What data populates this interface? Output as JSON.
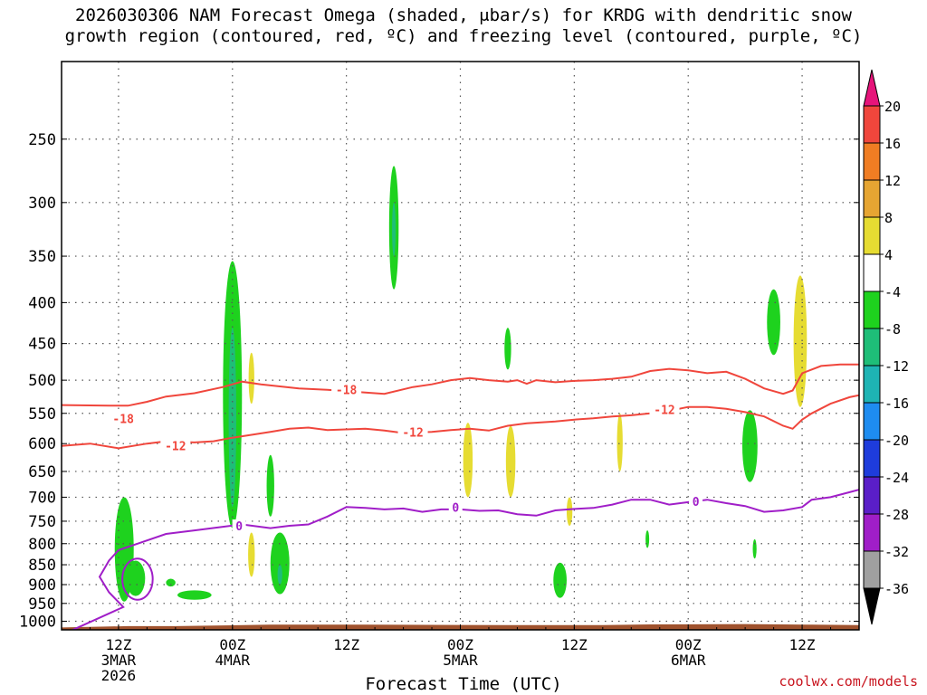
{
  "header": {
    "title_line1": "2026030306 NAM Forecast Omega (shaded, μbar/s) for KRDG with dendritic snow",
    "title_line2": "growth region (contoured, red, ºC) and freezing level (contoured, purple, ºC)"
  },
  "footer": {
    "credit": "coolwx.com/models"
  },
  "chart_data": {
    "type": "heatmap",
    "title": "2026030306 NAM Forecast Omega (shaded, μbar/s) for KRDG with dendritic snow growth region (contoured, red, ºC) and freezing level (contoured, purple, ºC)",
    "xlabel": "Forecast Time (UTC)",
    "ylabel": "",
    "y_axis": {
      "scale": "log-pressure",
      "units": "hPa",
      "ticks": [
        250,
        300,
        350,
        400,
        450,
        500,
        550,
        600,
        650,
        700,
        750,
        800,
        850,
        900,
        950,
        1000
      ],
      "range": [
        1025,
        200
      ]
    },
    "x_axis": {
      "units": "forecast hour",
      "range": [
        3,
        87
      ],
      "ticks": [
        {
          "hour": 9,
          "line1": "12Z",
          "line2": "3MAR",
          "line3": "2026"
        },
        {
          "hour": 21,
          "line1": "00Z",
          "line2": "4MAR",
          "line3": ""
        },
        {
          "hour": 33,
          "line1": "12Z",
          "line2": "",
          "line3": ""
        },
        {
          "hour": 45,
          "line1": "00Z",
          "line2": "5MAR",
          "line3": ""
        },
        {
          "hour": 57,
          "line1": "12Z",
          "line2": "",
          "line3": ""
        },
        {
          "hour": 69,
          "line1": "00Z",
          "line2": "6MAR",
          "line3": ""
        },
        {
          "hour": 81,
          "line1": "12Z",
          "line2": "",
          "line3": ""
        }
      ]
    },
    "grid": true,
    "colorbar": {
      "placement": "right",
      "units": "μbar/s",
      "labels": [
        "20",
        "16",
        "12",
        "8",
        "4",
        "-4",
        "-8",
        "-12",
        "-16",
        "-20",
        "-24",
        "-28",
        "-32",
        "-36"
      ],
      "bins": [
        {
          "from": 20,
          "to": null,
          "color": "#e6147a"
        },
        {
          "from": 16,
          "to": 20,
          "color": "#f0463c"
        },
        {
          "from": 12,
          "to": 16,
          "color": "#f07d23"
        },
        {
          "from": 8,
          "to": 12,
          "color": "#e6a532"
        },
        {
          "from": 4,
          "to": 8,
          "color": "#e6dc32"
        },
        {
          "from": -4,
          "to": 4,
          "color": "#ffffff"
        },
        {
          "from": -8,
          "to": -4,
          "color": "#1ed21e"
        },
        {
          "from": -12,
          "to": -8,
          "color": "#1ebe78"
        },
        {
          "from": -16,
          "to": -12,
          "color": "#1eb4b4"
        },
        {
          "from": -20,
          "to": -16,
          "color": "#1e8cf0"
        },
        {
          "from": -24,
          "to": -20,
          "color": "#1e3cdc"
        },
        {
          "from": -28,
          "to": -24,
          "color": "#5a1ec8"
        },
        {
          "from": -32,
          "to": -28,
          "color": "#a01ec8"
        },
        {
          "from": -36,
          "to": -32,
          "color": "#a0a0a0"
        },
        {
          "from": null,
          "to": -36,
          "color": "#000000"
        }
      ]
    },
    "terrain_color": "#a0522d",
    "omega_regions": [
      {
        "hour": 9.6,
        "hw": 1.0,
        "p_top": 700,
        "p_bot": 945,
        "value": -6
      },
      {
        "hour": 10.8,
        "hw": 1.0,
        "p_top": 840,
        "p_bot": 930,
        "value": -6
      },
      {
        "hour": 14.5,
        "hw": 0.5,
        "p_top": 885,
        "p_bot": 905,
        "value": -6
      },
      {
        "hour": 17.0,
        "hw": 1.8,
        "p_top": 915,
        "p_bot": 940,
        "value": -6
      },
      {
        "hour": 21.0,
        "hw": 1.0,
        "p_top": 355,
        "p_bot": 765,
        "value": -6
      },
      {
        "hour": 21.0,
        "hw": 0.4,
        "p_top": 430,
        "p_bot": 720,
        "value": -10
      },
      {
        "hour": 23.0,
        "hw": 0.3,
        "p_top": 462,
        "p_bot": 535,
        "value": 5
      },
      {
        "hour": 23.0,
        "hw": 0.35,
        "p_top": 775,
        "p_bot": 880,
        "value": 5
      },
      {
        "hour": 25.0,
        "hw": 0.4,
        "p_top": 620,
        "p_bot": 740,
        "value": -6
      },
      {
        "hour": 26.0,
        "hw": 1.0,
        "p_top": 775,
        "p_bot": 925,
        "value": -6
      },
      {
        "hour": 26.0,
        "hw": 0.25,
        "p_top": 850,
        "p_bot": 900,
        "value": -10
      },
      {
        "hour": 38.0,
        "hw": 0.5,
        "p_top": 270,
        "p_bot": 385,
        "value": -6
      },
      {
        "hour": 38.0,
        "hw": 0.15,
        "p_top": 300,
        "p_bot": 350,
        "value": -10
      },
      {
        "hour": 45.8,
        "hw": 0.5,
        "p_top": 565,
        "p_bot": 700,
        "value": 5
      },
      {
        "hour": 50.0,
        "hw": 0.35,
        "p_top": 430,
        "p_bot": 485,
        "value": -6
      },
      {
        "hour": 50.3,
        "hw": 0.5,
        "p_top": 570,
        "p_bot": 700,
        "value": 5
      },
      {
        "hour": 55.5,
        "hw": 0.7,
        "p_top": 845,
        "p_bot": 935,
        "value": -6
      },
      {
        "hour": 56.5,
        "hw": 0.3,
        "p_top": 700,
        "p_bot": 760,
        "value": 5
      },
      {
        "hour": 61.8,
        "hw": 0.3,
        "p_top": 550,
        "p_bot": 650,
        "value": 5
      },
      {
        "hour": 64.7,
        "hw": 0.15,
        "p_top": 770,
        "p_bot": 810,
        "value": -6
      },
      {
        "hour": 75.5,
        "hw": 0.8,
        "p_top": 545,
        "p_bot": 670,
        "value": -6
      },
      {
        "hour": 76.0,
        "hw": 0.2,
        "p_top": 790,
        "p_bot": 835,
        "value": -6
      },
      {
        "hour": 78.0,
        "hw": 0.7,
        "p_top": 385,
        "p_bot": 465,
        "value": -6
      },
      {
        "hour": 80.8,
        "hw": 0.7,
        "p_top": 370,
        "p_bot": 540,
        "value": 5
      }
    ],
    "contours": [
      {
        "name": "-18 ºC",
        "label": "-18",
        "color": "#f0463c",
        "label_points": [
          [
            9.5,
            560
          ],
          [
            33.0,
            515
          ]
        ],
        "points": [
          [
            3,
            537
          ],
          [
            8,
            538
          ],
          [
            10,
            538
          ],
          [
            12,
            532
          ],
          [
            14,
            524
          ],
          [
            17,
            519
          ],
          [
            20,
            510
          ],
          [
            22,
            502
          ],
          [
            24,
            506
          ],
          [
            28,
            512
          ],
          [
            31,
            514
          ],
          [
            34,
            517
          ],
          [
            37,
            520
          ],
          [
            40,
            510
          ],
          [
            42,
            506
          ],
          [
            44,
            500
          ],
          [
            46,
            497
          ],
          [
            48,
            500
          ],
          [
            50,
            502
          ],
          [
            51,
            500
          ],
          [
            52,
            505
          ],
          [
            53,
            500
          ],
          [
            55,
            503
          ],
          [
            57,
            501
          ],
          [
            59,
            500
          ],
          [
            61,
            498
          ],
          [
            63,
            495
          ],
          [
            65,
            487
          ],
          [
            67,
            484
          ],
          [
            69,
            486
          ],
          [
            71,
            490
          ],
          [
            73,
            488
          ],
          [
            75,
            498
          ],
          [
            77,
            512
          ],
          [
            79,
            520
          ],
          [
            80,
            515
          ],
          [
            81,
            490
          ],
          [
            83,
            480
          ],
          [
            85,
            478
          ],
          [
            87,
            478
          ]
        ]
      },
      {
        "name": "-12 ºC",
        "label": "-12",
        "color": "#f0463c",
        "label_points": [
          [
            15.0,
            605
          ],
          [
            40.0,
            582
          ],
          [
            66.5,
            545
          ]
        ],
        "points": [
          [
            3,
            604
          ],
          [
            6,
            600
          ],
          [
            9,
            608
          ],
          [
            12,
            600
          ],
          [
            14,
            596
          ],
          [
            17,
            598
          ],
          [
            19,
            596
          ],
          [
            21,
            590
          ],
          [
            23,
            585
          ],
          [
            25,
            580
          ],
          [
            27,
            575
          ],
          [
            29,
            573
          ],
          [
            31,
            577
          ],
          [
            33,
            576
          ],
          [
            35,
            575
          ],
          [
            37,
            578
          ],
          [
            39,
            582
          ],
          [
            42,
            580
          ],
          [
            44,
            577
          ],
          [
            46,
            575
          ],
          [
            48,
            578
          ],
          [
            50,
            570
          ],
          [
            52,
            566
          ],
          [
            55,
            563
          ],
          [
            57,
            560
          ],
          [
            59,
            558
          ],
          [
            61,
            555
          ],
          [
            63,
            553
          ],
          [
            65,
            550
          ],
          [
            67,
            546
          ],
          [
            69,
            540
          ],
          [
            71,
            540
          ],
          [
            73,
            543
          ],
          [
            75,
            548
          ],
          [
            77,
            555
          ],
          [
            79,
            570
          ],
          [
            80,
            575
          ],
          [
            81,
            560
          ],
          [
            82,
            550
          ],
          [
            84,
            535
          ],
          [
            86,
            525
          ],
          [
            87,
            522
          ]
        ]
      },
      {
        "name": "0 ºC",
        "label": "0",
        "color": "#a01ec8",
        "label_points": [
          [
            21.7,
            762
          ],
          [
            44.5,
            722
          ],
          [
            69.8,
            710
          ]
        ],
        "points": [
          [
            3,
            1040
          ],
          [
            9.5,
            960
          ],
          [
            8,
            920
          ],
          [
            7,
            880
          ],
          [
            8,
            840
          ],
          [
            9,
            815
          ],
          [
            11,
            800
          ],
          [
            14,
            778
          ],
          [
            17,
            770
          ],
          [
            20,
            762
          ],
          [
            22,
            757
          ],
          [
            25,
            765
          ],
          [
            27,
            760
          ],
          [
            29,
            757
          ],
          [
            31,
            740
          ],
          [
            33,
            720
          ],
          [
            35,
            722
          ],
          [
            37,
            725
          ],
          [
            39,
            723
          ],
          [
            41,
            730
          ],
          [
            43,
            725
          ],
          [
            45,
            725
          ],
          [
            47,
            728
          ],
          [
            49,
            727
          ],
          [
            51,
            735
          ],
          [
            53,
            738
          ],
          [
            55,
            727
          ],
          [
            57,
            724
          ],
          [
            59,
            722
          ],
          [
            61,
            715
          ],
          [
            63,
            705
          ],
          [
            65,
            705
          ],
          [
            67,
            715
          ],
          [
            69,
            710
          ],
          [
            71,
            705
          ],
          [
            73,
            712
          ],
          [
            75,
            718
          ],
          [
            77,
            730
          ],
          [
            79,
            727
          ],
          [
            81,
            720
          ],
          [
            82,
            705
          ],
          [
            84,
            700
          ],
          [
            86,
            690
          ],
          [
            87,
            685
          ]
        ]
      }
    ],
    "freezing_loop": {
      "hour_center": 11.0,
      "hour_hw": 1.6,
      "p_top": 835,
      "p_bot": 940,
      "color": "#a01ec8"
    },
    "terrain": {
      "pressure_by_hour": [
        [
          3,
          1018
        ],
        [
          10,
          1014
        ],
        [
          15,
          1014
        ],
        [
          20,
          1012
        ],
        [
          25,
          1010
        ],
        [
          35,
          1010
        ],
        [
          50,
          1011
        ],
        [
          60,
          1011
        ],
        [
          65,
          1009
        ],
        [
          75,
          1008
        ],
        [
          82,
          1010
        ],
        [
          87,
          1011
        ]
      ]
    }
  }
}
